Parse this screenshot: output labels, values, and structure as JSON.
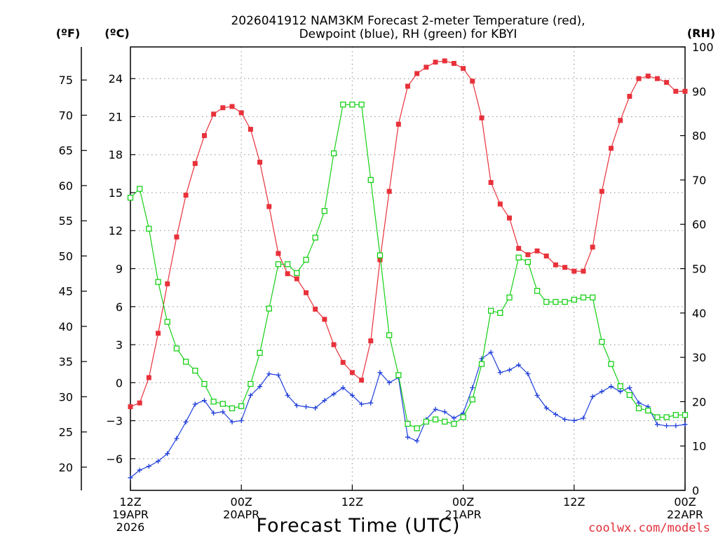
{
  "header": {
    "title_line1": "2026041912 NAM3KM Forecast 2-meter Temperature (red),",
    "title_line2": "Dewpoint (blue), RH (green) for KBYI"
  },
  "units": {
    "fahrenheit": "(ºF)",
    "celsius": "(ºC)",
    "rh": "(RH)"
  },
  "credit": "coolwx.com/models",
  "colors": {
    "temperature": "#e8313a",
    "dewpoint": "#1f3fdb",
    "rh": "#17d017",
    "grid": "#a0a0a0",
    "axis": "#000000"
  },
  "chart_data": {
    "type": "line",
    "title": "2026041912 NAM3KM Forecast 2-meter Temperature (red), Dewpoint (blue), RH (green) for KBYI",
    "xlabel": "Forecast Time (UTC)",
    "x_unit": "forecast hour from 2026-04-19 12Z",
    "xlim": [
      0,
      60
    ],
    "x_ticks": [
      {
        "hour": 0,
        "lines": [
          "12Z",
          "19APR",
          "2026"
        ]
      },
      {
        "hour": 12,
        "lines": [
          "00Z",
          "20APR"
        ]
      },
      {
        "hour": 24,
        "lines": [
          "12Z"
        ]
      },
      {
        "hour": 36,
        "lines": [
          "00Z",
          "21APR"
        ]
      },
      {
        "hour": 48,
        "lines": [
          "12Z"
        ]
      },
      {
        "hour": 60,
        "lines": [
          "00Z",
          "22APR"
        ]
      }
    ],
    "celsius_axis": {
      "ylim": [
        -8.5,
        26.5
      ],
      "ticks": [
        -6,
        -3,
        0,
        3,
        6,
        9,
        12,
        15,
        18,
        21,
        24
      ],
      "tick_labels": [
        "−6",
        "−3",
        "0",
        "3",
        "6",
        "9",
        "12",
        "15",
        "18",
        "21",
        "24"
      ]
    },
    "fahrenheit_axis": {
      "ticks": [
        20,
        25,
        30,
        35,
        40,
        45,
        50,
        55,
        60,
        65,
        70,
        75
      ],
      "tick_labels": [
        "20",
        "25",
        "30",
        "35",
        "40",
        "45",
        "50",
        "55",
        "60",
        "65",
        "70",
        "75"
      ]
    },
    "rh_axis": {
      "ylim": [
        0,
        100
      ],
      "ticks": [
        0,
        10,
        20,
        30,
        40,
        50,
        60,
        70,
        80,
        90,
        100
      ],
      "tick_labels": [
        "0",
        "10",
        "20",
        "30",
        "40",
        "50",
        "60",
        "70",
        "80",
        "90",
        "100"
      ]
    },
    "series": [
      {
        "name": "2-meter Temperature (°C)",
        "axis": "celsius",
        "marker": "filled-square",
        "x": [
          0,
          1,
          2,
          3,
          4,
          5,
          6,
          7,
          8,
          9,
          10,
          11,
          12,
          13,
          14,
          15,
          16,
          17,
          18,
          19,
          20,
          21,
          22,
          23,
          24,
          25,
          26,
          27,
          28,
          29,
          30,
          31,
          32,
          33,
          34,
          35,
          36,
          37,
          38,
          39,
          40,
          41,
          42,
          43,
          44,
          45,
          46,
          47,
          48,
          49,
          50,
          51,
          52,
          53,
          54,
          55,
          56,
          57,
          58,
          59,
          60
        ],
        "values": [
          -1.9,
          -1.6,
          0.4,
          3.9,
          7.8,
          11.5,
          14.8,
          17.3,
          19.5,
          21.2,
          21.7,
          21.8,
          21.3,
          20.0,
          17.4,
          13.9,
          10.2,
          8.6,
          8.2,
          7.1,
          5.8,
          5.0,
          3.0,
          1.6,
          0.8,
          0.2,
          3.3,
          9.7,
          15.1,
          20.4,
          23.4,
          24.4,
          24.9,
          25.3,
          25.4,
          25.2,
          24.8,
          23.8,
          20.9,
          15.8,
          14.1,
          13.0,
          10.6,
          10.1,
          10.4,
          10.0,
          9.3,
          9.1,
          8.8,
          8.8,
          10.7,
          15.1,
          18.5,
          20.7,
          22.6,
          24.0,
          24.2,
          24.0,
          23.7,
          23.0,
          23.0
        ]
      },
      {
        "name": "Dewpoint (°C)",
        "axis": "celsius",
        "marker": "plus",
        "x": [
          0,
          1,
          2,
          3,
          4,
          5,
          6,
          7,
          8,
          9,
          10,
          11,
          12,
          13,
          14,
          15,
          16,
          17,
          18,
          19,
          20,
          21,
          22,
          23,
          24,
          25,
          26,
          27,
          28,
          29,
          30,
          31,
          32,
          33,
          34,
          35,
          36,
          37,
          38,
          39,
          40,
          41,
          42,
          43,
          44,
          45,
          46,
          47,
          48,
          49,
          50,
          51,
          52,
          53,
          54,
          55,
          56,
          57,
          58,
          59,
          60
        ],
        "values": [
          -7.5,
          -6.9,
          -6.6,
          -6.2,
          -5.6,
          -4.4,
          -3.1,
          -1.7,
          -1.4,
          -2.4,
          -2.3,
          -3.1,
          -3.0,
          -1.0,
          -0.3,
          0.7,
          0.6,
          -1.0,
          -1.8,
          -1.9,
          -2.0,
          -1.4,
          -0.9,
          -0.4,
          -1.0,
          -1.7,
          -1.6,
          0.8,
          0.0,
          0.4,
          -4.3,
          -4.6,
          -2.9,
          -2.1,
          -2.3,
          -2.8,
          -2.4,
          -0.4,
          1.9,
          2.4,
          0.8,
          1.0,
          1.4,
          0.7,
          -1.0,
          -2.0,
          -2.5,
          -2.9,
          -3.0,
          -2.8,
          -1.1,
          -0.7,
          -0.3,
          -0.7,
          -0.4,
          -1.6,
          -1.9,
          -3.3,
          -3.4,
          -3.4,
          -3.3
        ]
      },
      {
        "name": "Relative Humidity (%)",
        "axis": "rh",
        "marker": "open-square",
        "x": [
          0,
          1,
          2,
          3,
          4,
          5,
          6,
          7,
          8,
          9,
          10,
          11,
          12,
          13,
          14,
          15,
          16,
          17,
          18,
          19,
          20,
          21,
          22,
          23,
          24,
          25,
          26,
          27,
          28,
          29,
          30,
          31,
          32,
          33,
          34,
          35,
          36,
          37,
          38,
          39,
          40,
          41,
          42,
          43,
          44,
          45,
          46,
          47,
          48,
          49,
          50,
          51,
          52,
          53,
          54,
          55,
          56,
          57,
          58,
          59,
          60
        ],
        "values": [
          66,
          68,
          59,
          47,
          38,
          32,
          29,
          27,
          24,
          20,
          19.5,
          18.5,
          19,
          24,
          31,
          41,
          51,
          51,
          49,
          52,
          57,
          63,
          76,
          87,
          87,
          87,
          70,
          53,
          35,
          26,
          15,
          14,
          15.5,
          16,
          15.5,
          15,
          16.5,
          20.5,
          28.5,
          40.5,
          40,
          43.5,
          52.5,
          51.5,
          45,
          42.5,
          42.5,
          42.5,
          43,
          43.5,
          43.5,
          33.5,
          28.5,
          23.5,
          21.5,
          18.5,
          18,
          16.5,
          16.5,
          17,
          17
        ]
      }
    ]
  }
}
